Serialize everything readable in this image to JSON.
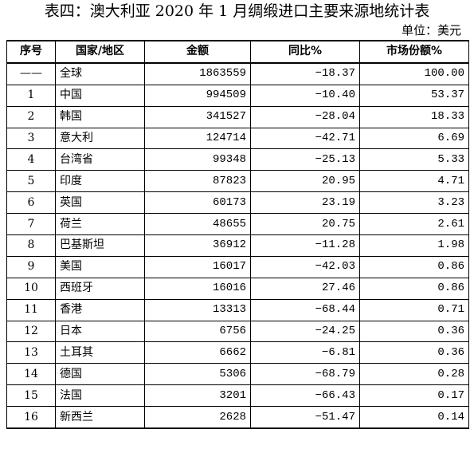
{
  "title": "表四：澳大利亚 2020 年 1 月绸缎进口主要来源地统计表",
  "unit": "单位：美元",
  "headers": [
    "序号",
    "国家/地区",
    "金额",
    "同比%",
    "市场份额%"
  ],
  "rows": [
    {
      "seq": "——",
      "region": "全球",
      "amount": "1863559",
      "yoy": "-18.37",
      "share": "100.00"
    },
    {
      "seq": "1",
      "region": "中国",
      "amount": "994509",
      "yoy": "-10.40",
      "share": "53.37"
    },
    {
      "seq": "2",
      "region": "韩国",
      "amount": "341527",
      "yoy": "-28.04",
      "share": "18.33"
    },
    {
      "seq": "3",
      "region": "意大利",
      "amount": "124714",
      "yoy": "-42.71",
      "share": "6.69"
    },
    {
      "seq": "4",
      "region": "台湾省",
      "amount": "99348",
      "yoy": "-25.13",
      "share": "5.33"
    },
    {
      "seq": "5",
      "region": "印度",
      "amount": "87823",
      "yoy": "20.95",
      "share": "4.71"
    },
    {
      "seq": "6",
      "region": "英国",
      "amount": "60173",
      "yoy": "23.19",
      "share": "3.23"
    },
    {
      "seq": "7",
      "region": "荷兰",
      "amount": "48655",
      "yoy": "20.75",
      "share": "2.61"
    },
    {
      "seq": "8",
      "region": "巴基斯坦",
      "amount": "36912",
      "yoy": "-11.28",
      "share": "1.98"
    },
    {
      "seq": "9",
      "region": "美国",
      "amount": "16017",
      "yoy": "-42.03",
      "share": "0.86"
    },
    {
      "seq": "10",
      "region": "西班牙",
      "amount": "16016",
      "yoy": "27.46",
      "share": "0.86"
    },
    {
      "seq": "11",
      "region": "香港",
      "amount": "13313",
      "yoy": "-68.44",
      "share": "0.71"
    },
    {
      "seq": "12",
      "region": "日本",
      "amount": "6756",
      "yoy": "-24.25",
      "share": "0.36"
    },
    {
      "seq": "13",
      "region": "土耳其",
      "amount": "6662",
      "yoy": "-6.81",
      "share": "0.36"
    },
    {
      "seq": "14",
      "region": "德国",
      "amount": "5306",
      "yoy": "-68.79",
      "share": "0.28"
    },
    {
      "seq": "15",
      "region": "法国",
      "amount": "3201",
      "yoy": "-66.43",
      "share": "0.17"
    },
    {
      "seq": "16",
      "region": "新西兰",
      "amount": "2628",
      "yoy": "-51.47",
      "share": "0.14"
    }
  ]
}
